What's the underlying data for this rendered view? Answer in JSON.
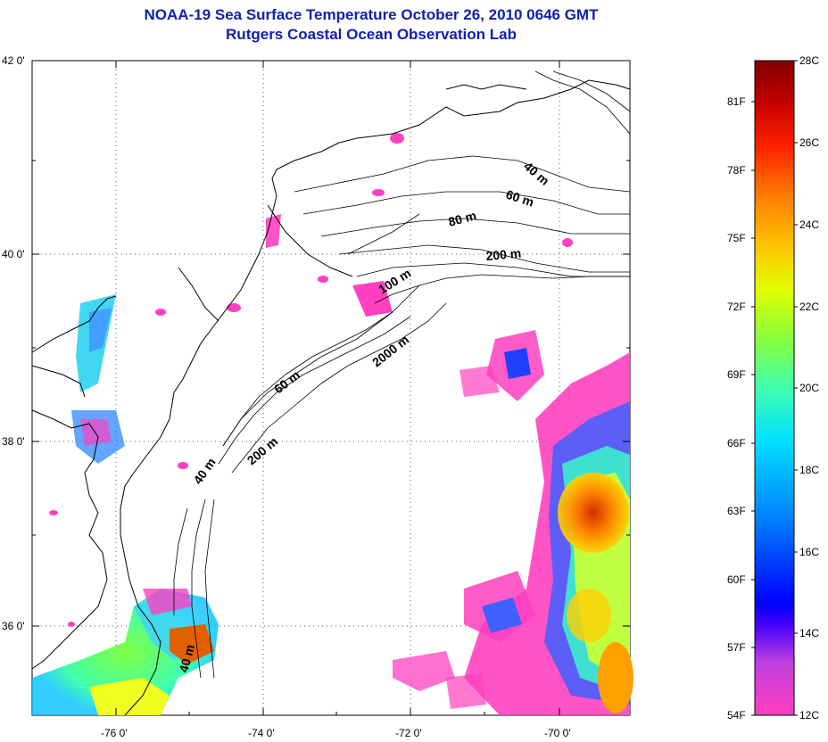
{
  "title": {
    "line1": "NOAA-19 Sea Surface Temperature October 26, 2010 0646 GMT",
    "line2": "Rutgers Coastal Ocean Observation Lab"
  },
  "map": {
    "lat_labels": [
      "42 0'",
      "40 0'",
      "38 0'",
      "36 0'"
    ],
    "lon_labels": [
      "-76 0'",
      "-74 0'",
      "-72 0'",
      "-70 0'"
    ],
    "contour_labels": [
      "40 m",
      "60 m",
      "80 m",
      "200 m",
      "100 m",
      "2000 m",
      "60 m",
      "200 m",
      "40 m",
      "40 m"
    ]
  },
  "colorbar": {
    "fahrenheit": [
      "81F",
      "78F",
      "75F",
      "72F",
      "69F",
      "66F",
      "63F",
      "60F",
      "57F",
      "54F"
    ],
    "celsius": [
      "28C",
      "26C",
      "24C",
      "22C",
      "20C",
      "18C",
      "16C",
      "14C",
      "12C"
    ],
    "colors": [
      "#800000",
      "#ff0000",
      "#ff8000",
      "#ffff00",
      "#80ff00",
      "#00ffff",
      "#0080ff",
      "#0000ff",
      "#8000ff",
      "#ff00ff"
    ]
  }
}
